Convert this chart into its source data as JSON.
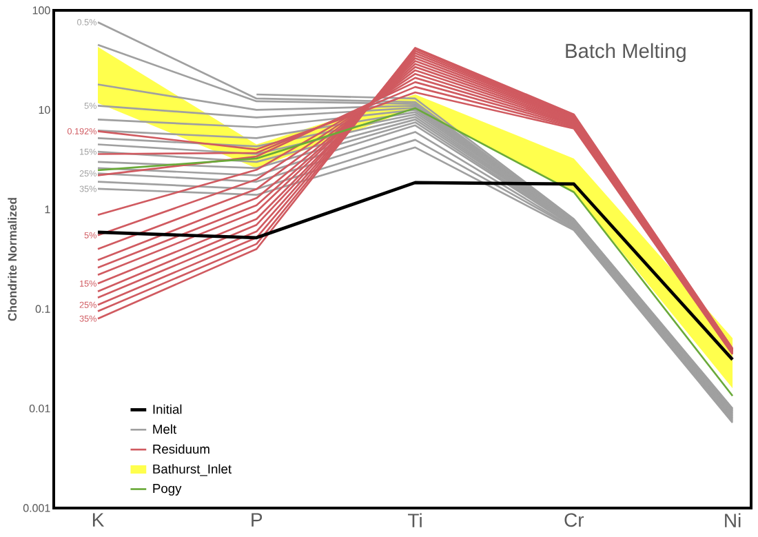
{
  "chart_data": {
    "type": "line",
    "title": "Batch Melting",
    "ylabel": "Chondrite Normalized",
    "categories": [
      "K",
      "P",
      "Ti",
      "Cr",
      "Ni"
    ],
    "log": true,
    "ylim": [
      0.001,
      100
    ],
    "yticks": [
      0.001,
      0.01,
      0.1,
      1,
      10,
      100
    ],
    "legend": "bottom left",
    "annotations": [
      {
        "text": "0.5%",
        "x": "K",
        "y": 76
      },
      {
        "text": "5%",
        "x": "K",
        "y": 11
      },
      {
        "text": "15%",
        "x": "K",
        "y": 3.8
      },
      {
        "text": "25%",
        "x": "K",
        "y": 2.3
      },
      {
        "text": "35%",
        "x": "K",
        "y": 1.61
      },
      {
        "text": "0.192%",
        "x": "K",
        "y": 6.1
      },
      {
        "text": "5%",
        "x": "K",
        "y": 0.55
      },
      {
        "text": "15%",
        "x": "K",
        "y": 0.18
      },
      {
        "text": "25%",
        "x": "K",
        "y": 0.11
      },
      {
        "text": "35%",
        "x": "K",
        "y": 0.08
      }
    ],
    "series": [
      {
        "name": "Initial",
        "color": "#000000",
        "values": [
          0.59,
          0.52,
          1.86,
          1.8,
          0.031
        ]
      },
      {
        "name": "Melt",
        "color": "#a0a0a0",
        "values": [
          null,
          14.3,
          13,
          0.8,
          0.01
        ]
      },
      {
        "color": "#a0a0a0",
        "values": [
          76,
          13,
          12,
          0.79,
          0.0098
        ]
      },
      {
        "color": "#a0a0a0",
        "values": [
          45,
          12.2,
          11.5,
          0.78,
          0.0096
        ]
      },
      {
        "color": "#a0a0a0",
        "values": [
          18,
          10,
          11,
          0.77,
          0.0094
        ]
      },
      {
        "color": "#a0a0a0",
        "values": [
          11,
          8.4,
          10.5,
          0.76,
          0.0092
        ]
      },
      {
        "color": "#a0a0a0",
        "values": [
          8,
          6.7,
          10,
          0.75,
          0.009
        ]
      },
      {
        "color": "#a0a0a0",
        "values": [
          6.2,
          5.2,
          9.5,
          0.74,
          0.0088
        ]
      },
      {
        "color": "#a0a0a0",
        "values": [
          5.2,
          4.3,
          9,
          0.72,
          0.0086
        ]
      },
      {
        "color": "#a0a0a0",
        "values": [
          4.5,
          3.6,
          8.5,
          0.71,
          0.0084
        ]
      },
      {
        "color": "#a0a0a0",
        "values": [
          3.8,
          3,
          8,
          0.7,
          0.0082
        ]
      },
      {
        "color": "#a0a0a0",
        "values": [
          3,
          2.6,
          7.5,
          0.68,
          0.008
        ]
      },
      {
        "color": "#a0a0a0",
        "values": [
          2.6,
          2.2,
          7,
          0.67,
          0.0078
        ]
      },
      {
        "color": "#a0a0a0",
        "values": [
          2.3,
          1.9,
          6,
          0.65,
          0.0076
        ]
      },
      {
        "color": "#a0a0a0",
        "values": [
          1.9,
          1.6,
          5,
          0.64,
          0.0074
        ]
      },
      {
        "color": "#a0a0a0",
        "values": [
          1.61,
          1.4,
          4.2,
          0.62,
          0.0072
        ]
      },
      {
        "name": "Residuum",
        "color": "#d05a60",
        "values": [
          6.1,
          4,
          15,
          6.5,
          0.035
        ]
      },
      {
        "color": "#d05a60",
        "values": [
          3.6,
          3.7,
          17,
          6.7,
          0.0355
        ]
      },
      {
        "color": "#d05a60",
        "values": [
          2.2,
          3.4,
          19,
          6.9,
          0.036
        ]
      },
      {
        "color": "#d05a60",
        "values": [
          0.88,
          2.5,
          21,
          7.1,
          0.0365
        ]
      },
      {
        "color": "#d05a60",
        "values": [
          0.55,
          2,
          23,
          7.3,
          0.037
        ]
      },
      {
        "color": "#d05a60",
        "values": [
          0.4,
          1.6,
          25,
          7.5,
          0.0373
        ]
      },
      {
        "color": "#d05a60",
        "values": [
          0.31,
          1.3,
          27,
          7.7,
          0.0376
        ]
      },
      {
        "color": "#d05a60",
        "values": [
          0.26,
          1.1,
          29,
          7.9,
          0.038
        ]
      },
      {
        "color": "#d05a60",
        "values": [
          0.22,
          0.95,
          31,
          8.1,
          0.0383
        ]
      },
      {
        "color": "#d05a60",
        "values": [
          0.18,
          0.8,
          33,
          8.3,
          0.0386
        ]
      },
      {
        "color": "#d05a60",
        "values": [
          0.15,
          0.7,
          35,
          8.5,
          0.039
        ]
      },
      {
        "color": "#d05a60",
        "values": [
          0.13,
          0.6,
          37,
          8.6,
          0.0393
        ]
      },
      {
        "color": "#d05a60",
        "values": [
          0.11,
          0.52,
          39,
          8.7,
          0.0396
        ]
      },
      {
        "color": "#d05a60",
        "values": [
          0.095,
          0.45,
          41,
          8.8,
          0.0398
        ]
      },
      {
        "color": "#d05a60",
        "values": [
          0.08,
          0.4,
          42,
          9,
          0.04
        ]
      },
      {
        "name": "Bathurst_Inlet",
        "type": "area",
        "color": "#ffff4d",
        "values": [
          null,
          null,
          null,
          null,
          null
        ],
        "lower": [
          11.7,
          2.6,
          10.4,
          1.47,
          0.016
        ],
        "upper": [
          43,
          4.5,
          14.3,
          3.25,
          0.051
        ]
      },
      {
        "name": "Pogy",
        "color": "#6aaa3a",
        "values": [
          2.48,
          3.25,
          10.4,
          1.49,
          0.0134
        ]
      }
    ]
  }
}
